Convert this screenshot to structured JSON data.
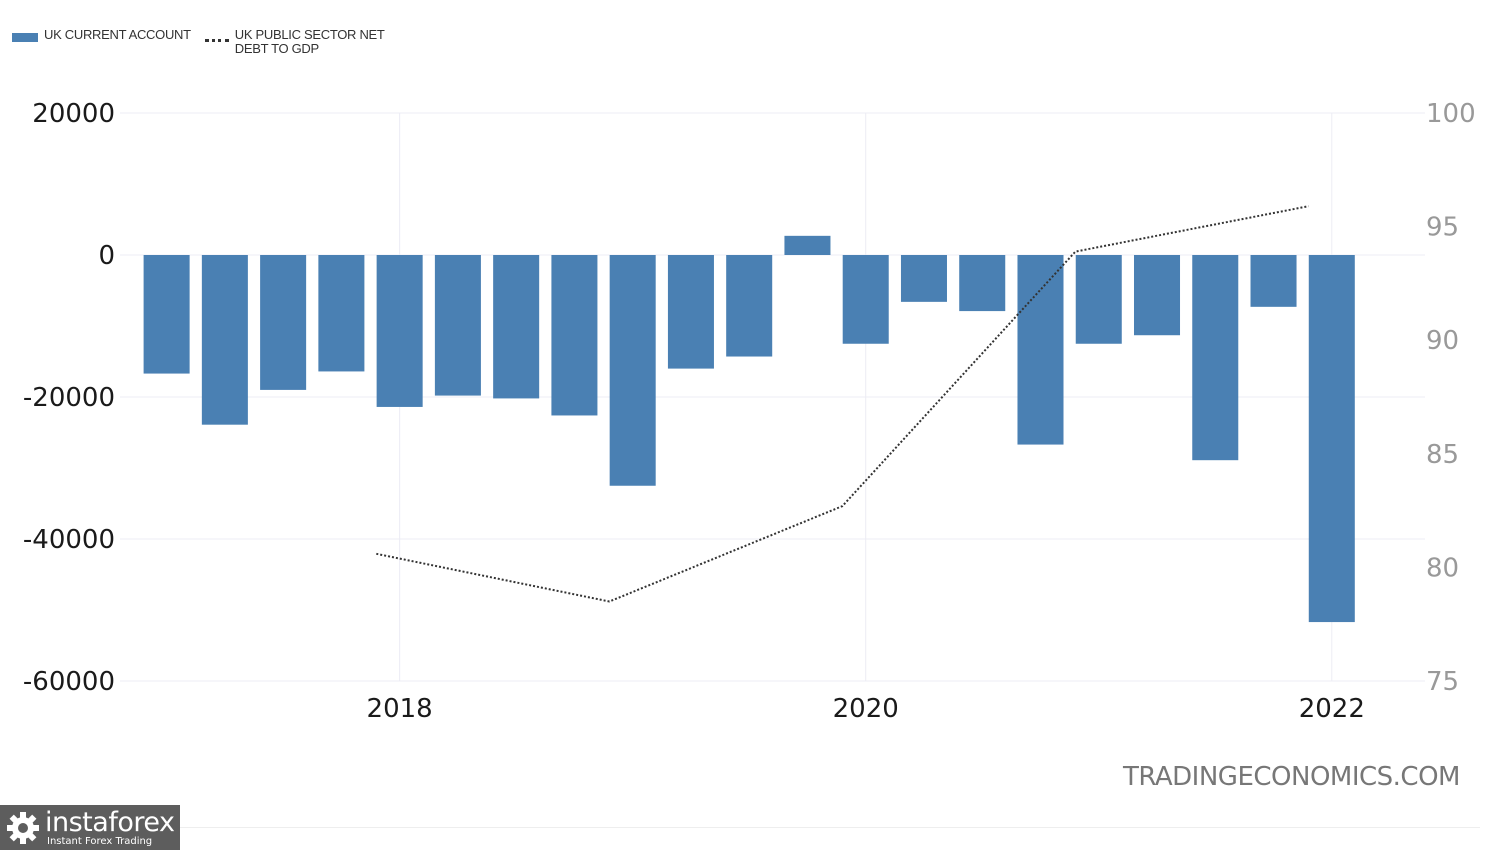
{
  "legend": [
    {
      "label": "UK CURRENT ACCOUNT",
      "style": "bar",
      "color": "#4a80b3"
    },
    {
      "label": "UK PUBLIC SECTOR NET DEBT TO GDP",
      "style": "dotted-line",
      "color": "#333333"
    }
  ],
  "watermark": "TRADINGECONOMICS.COM",
  "branding": {
    "name": "instaforex",
    "tagline": "Instant Forex Trading"
  },
  "chart_data": {
    "type": "bar",
    "title": "",
    "grid": true,
    "legend_position": "top-left",
    "x_axis": {
      "ticks": [
        "2018",
        "2020",
        "2022"
      ],
      "tick_values": [
        2018.0,
        2020.0,
        2022.0
      ],
      "range": [
        2016.8,
        2022.4
      ]
    },
    "y_left": {
      "ticks": [
        20000,
        0,
        -20000,
        -40000,
        -60000
      ],
      "range": [
        -60000,
        20000
      ]
    },
    "y_right": {
      "ticks": [
        100,
        95,
        90,
        85,
        80,
        75
      ],
      "range": [
        75,
        100
      ]
    },
    "series": [
      {
        "name": "UK CURRENT ACCOUNT",
        "kind": "bar",
        "axis": "left",
        "color": "#4a80b3",
        "x": [
          2017.0,
          2017.25,
          2017.5,
          2017.75,
          2018.0,
          2018.25,
          2018.5,
          2018.75,
          2019.0,
          2019.25,
          2019.5,
          2019.75,
          2020.0,
          2020.25,
          2020.5,
          2020.75,
          2021.0,
          2021.25,
          2021.5,
          2021.75,
          2022.0
        ],
        "values": [
          -16700,
          -23900,
          -19000,
          -16400,
          -21400,
          -19800,
          -20200,
          -22600,
          -32500,
          -16000,
          -14300,
          2700,
          -12500,
          -6600,
          -7900,
          -26700,
          -12500,
          -11300,
          -28900,
          -7300,
          -51700
        ]
      },
      {
        "name": "UK PUBLIC SECTOR NET DEBT TO GDP",
        "kind": "line",
        "axis": "right",
        "style": "dotted",
        "color": "#333333",
        "x": [
          2017.9,
          2018.9,
          2019.9,
          2020.9,
          2021.9
        ],
        "values": [
          80.6,
          78.5,
          82.7,
          93.9,
          95.9
        ]
      }
    ]
  }
}
